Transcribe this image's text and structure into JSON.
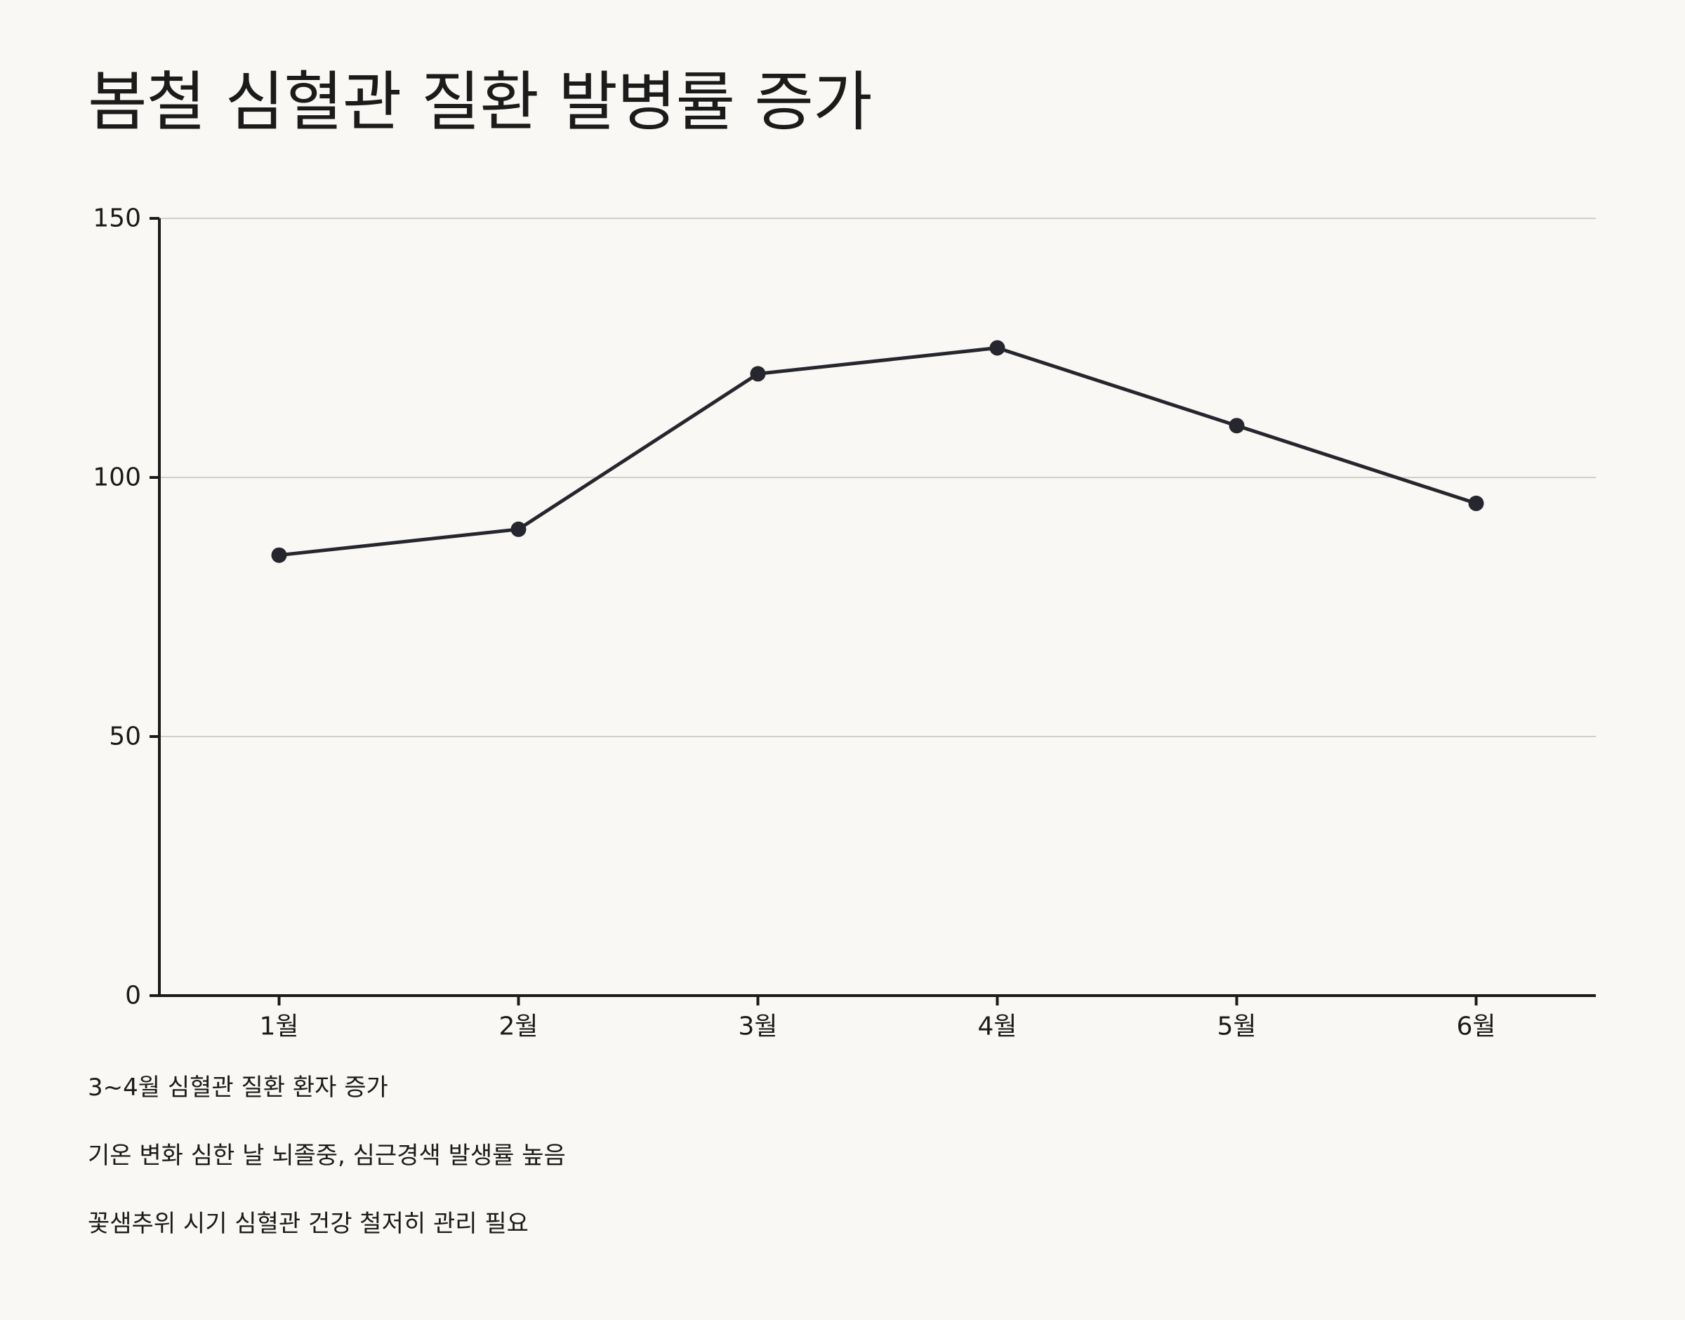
{
  "chart_data": {
    "type": "line",
    "title": "봄철 심혈관 질환 발병률 증가",
    "categories": [
      "1월",
      "2월",
      "3월",
      "4월",
      "5월",
      "6월"
    ],
    "series": [
      {
        "name": "심혈관 질환 발병률",
        "values": [
          85,
          90,
          120,
          125,
          110,
          95
        ]
      }
    ],
    "ylim": [
      0,
      150
    ],
    "yticks": [
      0,
      50,
      100,
      150
    ],
    "xlabel": "",
    "ylabel": "",
    "grid": true,
    "colors": {
      "line": "#26262e",
      "marker": "#26262e",
      "grid": "#cfcfcc",
      "axis": "#1b1b1b",
      "background": "#f9f8f4"
    }
  },
  "notes": [
    "3~4월 심혈관 질환 환자 증가",
    "기온 변화 심한 날 뇌졸중, 심근경색 발생률 높음",
    "꽃샘추위 시기 심혈관 건강 철저히 관리 필요"
  ]
}
